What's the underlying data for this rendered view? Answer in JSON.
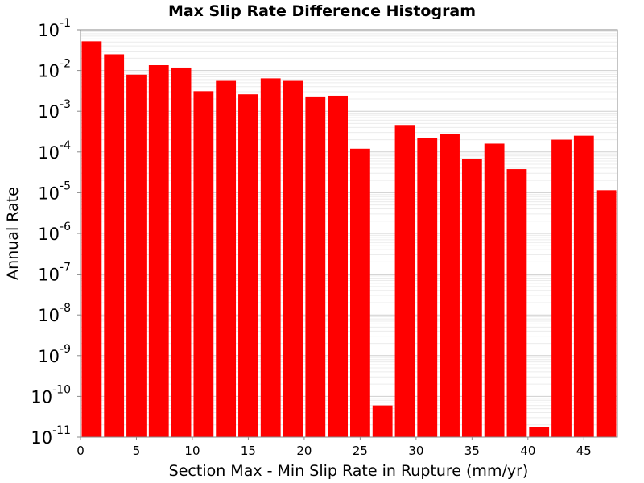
{
  "chart_data": {
    "type": "bar",
    "title": "Max Slip Rate Difference Histogram",
    "xlabel": "Section Max - Min Slip Rate in Rupture (mm/yr)",
    "ylabel": "Annual Rate",
    "yscale": "log",
    "ylim": [
      1e-11,
      0.1
    ],
    "xlim": [
      0,
      48
    ],
    "grid": true,
    "bar_color": "#ff0000",
    "bin_width": 2,
    "x": [
      1,
      3,
      5,
      7,
      9,
      11,
      13,
      15,
      17,
      19,
      21,
      23,
      25,
      27,
      29,
      31,
      33,
      35,
      37,
      39,
      41,
      43,
      45,
      47
    ],
    "values": [
      0.052,
      0.025,
      0.0079,
      0.0135,
      0.0118,
      0.0031,
      0.0058,
      0.0026,
      0.0064,
      0.0058,
      0.0023,
      0.0024,
      0.00012,
      6e-11,
      0.00046,
      0.00022,
      0.00027,
      6.6e-05,
      0.00016,
      3.8e-05,
      1.8e-11,
      0.0002,
      0.00025,
      1.15e-05
    ],
    "x_ticks": [
      "0",
      "5",
      "10",
      "15",
      "20",
      "25",
      "30",
      "35",
      "40",
      "45"
    ],
    "y_ticks": [
      {
        "base": "10",
        "exp": "-1"
      },
      {
        "base": "10",
        "exp": "-2"
      },
      {
        "base": "10",
        "exp": "-3"
      },
      {
        "base": "10",
        "exp": "-4"
      },
      {
        "base": "10",
        "exp": "-5"
      },
      {
        "base": "10",
        "exp": "-6"
      },
      {
        "base": "10",
        "exp": "-7"
      },
      {
        "base": "10",
        "exp": "-8"
      },
      {
        "base": "10",
        "exp": "-9"
      },
      {
        "base": "10",
        "exp": "-10"
      },
      {
        "base": "10",
        "exp": "-11"
      }
    ]
  }
}
